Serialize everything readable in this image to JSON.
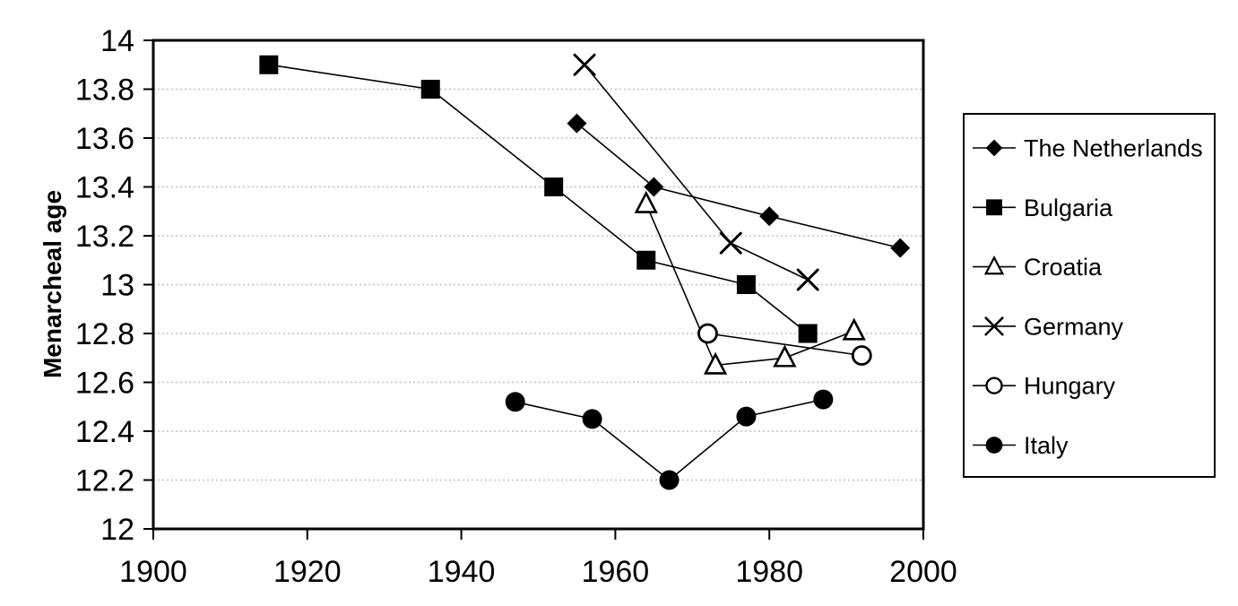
{
  "chart_data": {
    "type": "line",
    "title": "",
    "xlabel": "",
    "ylabel": "Menarcheal age",
    "x_range": [
      1900,
      2000
    ],
    "y_range": [
      12,
      14
    ],
    "x_ticks": [
      1900,
      1920,
      1940,
      1960,
      1980,
      2000
    ],
    "y_ticks": [
      {
        "value": 14,
        "label": "14"
      },
      {
        "value": 13.8,
        "label": "13.8"
      },
      {
        "value": 13.6,
        "label": "13.6"
      },
      {
        "value": 13.4,
        "label": "13.4"
      },
      {
        "value": 13.2,
        "label": "13.2"
      },
      {
        "value": 13,
        "label": "13"
      },
      {
        "value": 12.8,
        "label": "12.8"
      },
      {
        "value": 12.6,
        "label": "12.6"
      },
      {
        "value": 12.4,
        "label": "12.4"
      },
      {
        "value": 12.2,
        "label": "12.2"
      },
      {
        "value": 12,
        "label": "12"
      }
    ],
    "grid": "horizontal-dotted",
    "legend_position": "right-outside-box",
    "colors": {
      "foreground": "#000000",
      "background": "#ffffff",
      "gridline": "#c0c0c0"
    },
    "series": [
      {
        "name": "The Netherlands",
        "marker": "diamond-filled",
        "points": [
          [
            1955,
            13.66
          ],
          [
            1965,
            13.4
          ],
          [
            1980,
            13.28
          ],
          [
            1997,
            13.15
          ]
        ]
      },
      {
        "name": "Bulgaria",
        "marker": "square-filled",
        "points": [
          [
            1915,
            13.9
          ],
          [
            1936,
            13.8
          ],
          [
            1952,
            13.4
          ],
          [
            1964,
            13.1
          ],
          [
            1977,
            13.0
          ],
          [
            1985,
            12.8
          ]
        ]
      },
      {
        "name": "Croatia",
        "marker": "triangle-open",
        "points": [
          [
            1964,
            13.33
          ],
          [
            1973,
            12.67
          ],
          [
            1982,
            12.7
          ],
          [
            1991,
            12.81
          ]
        ]
      },
      {
        "name": "Germany",
        "marker": "x-cross",
        "points": [
          [
            1956,
            13.9
          ],
          [
            1975,
            13.17
          ],
          [
            1985,
            13.02
          ]
        ]
      },
      {
        "name": "Hungary",
        "marker": "circle-open",
        "points": [
          [
            1972,
            12.8
          ],
          [
            1992,
            12.71
          ]
        ]
      },
      {
        "name": "Italy",
        "marker": "circle-filled",
        "points": [
          [
            1947,
            12.52
          ],
          [
            1957,
            12.45
          ],
          [
            1967,
            12.2
          ],
          [
            1977,
            12.46
          ],
          [
            1987,
            12.53
          ]
        ]
      }
    ]
  }
}
